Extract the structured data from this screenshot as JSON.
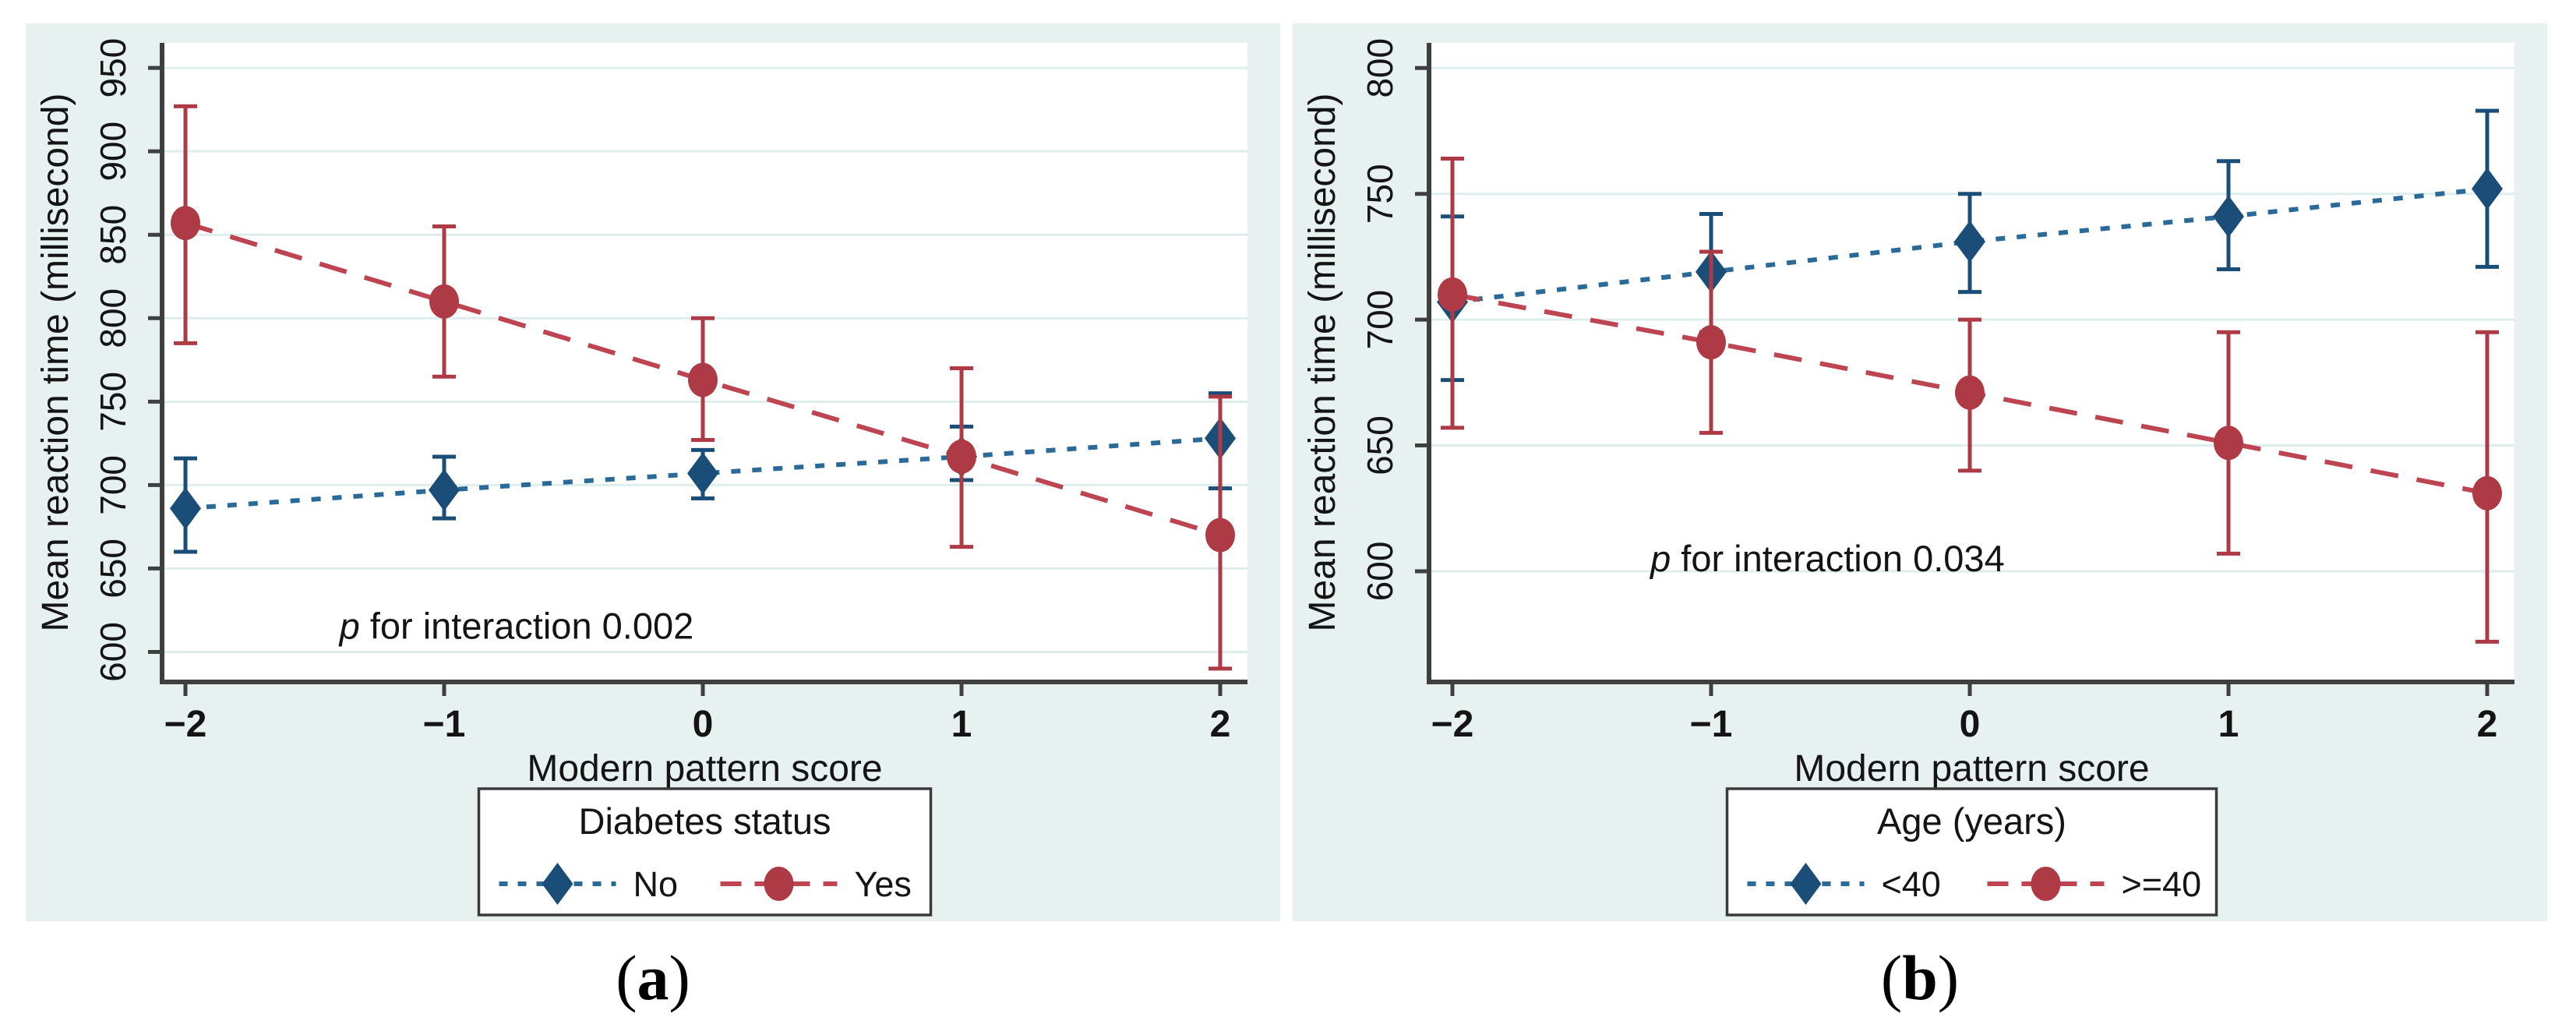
{
  "figure": {
    "background": "#ffffff",
    "panel_background": "#e6f1f0",
    "plot_background": "#ffffff",
    "grid_color": "#ddeeec",
    "axis_color": "#3f3f3f",
    "text_color": "#141414",
    "legend_border": "#3a3a3a",
    "legend_background": "#ffffff"
  },
  "chart_data": [
    {
      "type": "line",
      "panel": "a",
      "caption_prefix": "(",
      "caption_letter": "a",
      "caption_suffix": ")",
      "xlabel": "Modern pattern score",
      "ylabel": "Mean reaction time (millisecond)",
      "x": [
        -2,
        -1,
        0,
        1,
        2
      ],
      "xtick_labels": [
        "−2",
        "−1",
        "0",
        "1",
        "2"
      ],
      "ylim": [
        582,
        965
      ],
      "yticks": [
        600,
        650,
        700,
        750,
        800,
        850,
        900,
        950
      ],
      "grid": true,
      "legend_position": "bottom",
      "legend_title": "Diabetes status",
      "annotation_parts": [
        {
          "text": "p",
          "italic": true
        },
        {
          "text": " for interaction 0.002",
          "italic": false
        }
      ],
      "annotation_x": -0.72,
      "annotation_y": 608,
      "series": [
        {
          "name": "No",
          "marker": "diamond",
          "marker_color": "#1a4e78",
          "line_color": "#2a6a99",
          "line_style": "dotted",
          "values": [
            686,
            697,
            707,
            717,
            728
          ],
          "ci_low": [
            660,
            680,
            692,
            703,
            698
          ],
          "ci_high": [
            716,
            717,
            721,
            735,
            755
          ]
        },
        {
          "name": "Yes",
          "marker": "circle",
          "marker_color": "#ae3a46",
          "line_color": "#bc4551",
          "line_style": "dashed",
          "values": [
            857,
            810,
            763,
            717,
            670
          ],
          "ci_low": [
            785,
            765,
            727,
            663,
            590
          ],
          "ci_high": [
            927,
            855,
            800,
            770,
            753
          ]
        }
      ]
    },
    {
      "type": "line",
      "panel": "b",
      "caption_prefix": "(",
      "caption_letter": "b",
      "caption_suffix": ")",
      "xlabel": "Modern pattern score",
      "ylabel": "Mean reaction time (millisecond)",
      "x": [
        -2,
        -1,
        0,
        1,
        2
      ],
      "xtick_labels": [
        "−2",
        "−1",
        "0",
        "1",
        "2"
      ],
      "ylim": [
        556,
        810
      ],
      "yticks": [
        600,
        650,
        700,
        750,
        800
      ],
      "grid": true,
      "legend_position": "bottom",
      "legend_title": "Age (years)",
      "annotation_parts": [
        {
          "text": "p",
          "italic": true
        },
        {
          "text": " for interaction 0.034",
          "italic": false
        }
      ],
      "annotation_x": -0.55,
      "annotation_y": 600,
      "series": [
        {
          "name": "<40",
          "marker": "diamond",
          "marker_color": "#1a4e78",
          "line_color": "#2a6a99",
          "line_style": "dotted",
          "values": [
            707,
            719,
            731,
            741,
            752
          ],
          "ci_low": [
            676,
            695,
            711,
            720,
            721
          ],
          "ci_high": [
            741,
            742,
            750,
            763,
            783
          ]
        },
        {
          "name": ">=40",
          "marker": "circle",
          "marker_color": "#ae3a46",
          "line_color": "#bc4551",
          "line_style": "dashed",
          "values": [
            710,
            691,
            671,
            651,
            631
          ],
          "ci_low": [
            657,
            655,
            640,
            607,
            572
          ],
          "ci_high": [
            764,
            727,
            700,
            695,
            695
          ]
        }
      ]
    }
  ]
}
